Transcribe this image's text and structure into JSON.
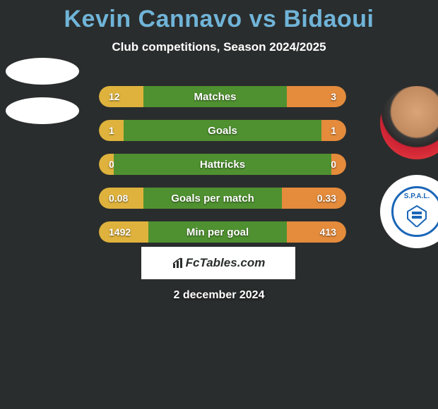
{
  "title": "Kevin Cannavo vs Bidaoui",
  "subtitle": "Club competitions, Season 2024/2025",
  "date": "2 december 2024",
  "brand": "FcTables.com",
  "colors": {
    "title": "#70b4d8",
    "background": "#2a2d2d",
    "bar_left": "#deb23c",
    "bar_mid": "#4f9130",
    "bar_right": "#e48b3c",
    "crest_border": "#1a66b8"
  },
  "rows": [
    {
      "label": "Matches",
      "left": "12",
      "right": "3",
      "left_pct": 18,
      "mid_pct": 58,
      "right_pct": 24
    },
    {
      "label": "Goals",
      "left": "1",
      "right": "1",
      "left_pct": 10,
      "mid_pct": 80,
      "right_pct": 10
    },
    {
      "label": "Hattricks",
      "left": "0",
      "right": "0",
      "left_pct": 6,
      "mid_pct": 88,
      "right_pct": 6
    },
    {
      "label": "Goals per match",
      "left": "0.08",
      "right": "0.33",
      "left_pct": 18,
      "mid_pct": 56,
      "right_pct": 26
    },
    {
      "label": "Min per goal",
      "left": "1492",
      "right": "413",
      "left_pct": 20,
      "mid_pct": 56,
      "right_pct": 24
    }
  ],
  "crest_text": "S.P.A.L."
}
